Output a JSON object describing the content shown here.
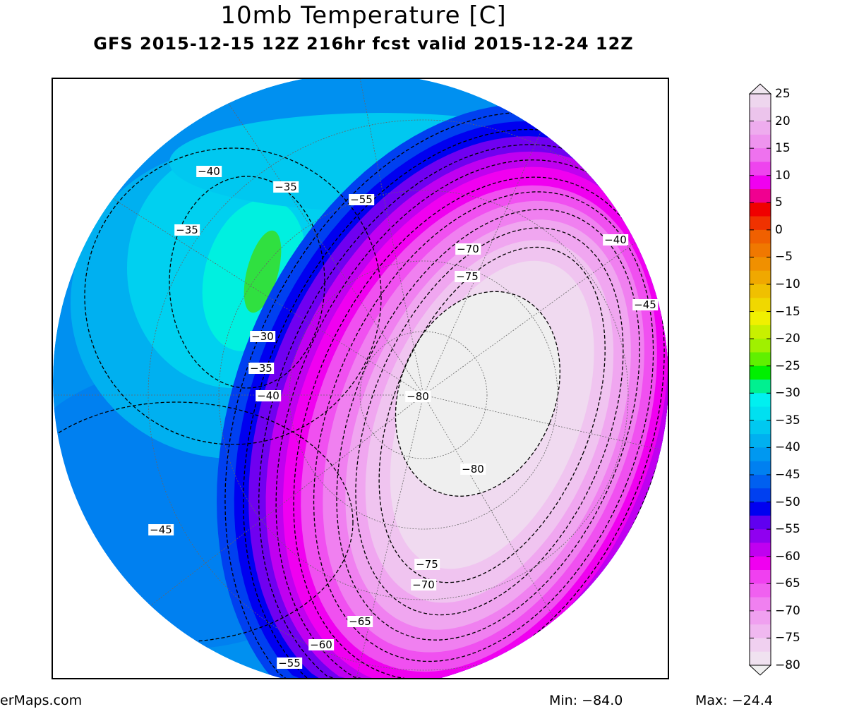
{
  "title": "10mb Temperature [C]",
  "subtitle": "GFS 2015-12-15 12Z 216hr fcst valid 2015-12-24 12Z",
  "source": "erMaps.com",
  "min_label": "Min: −84.0",
  "max_label": "Max: −24.4",
  "colorbar": {
    "ticks": [
      "25",
      "20",
      "15",
      "10",
      "5",
      "0",
      "−5",
      "−10",
      "−15",
      "−20",
      "−25",
      "−30",
      "−35",
      "−40",
      "−45",
      "−50",
      "−55",
      "−60",
      "−65",
      "−70",
      "−75",
      "−80"
    ],
    "tick_values": [
      25,
      20,
      15,
      10,
      5,
      0,
      -5,
      -10,
      -15,
      -20,
      -25,
      -30,
      -35,
      -40,
      -45,
      -50,
      -55,
      -60,
      -65,
      -70,
      -75,
      -80
    ],
    "range": [
      -80,
      25
    ],
    "step": 2.5,
    "colors_top_to_bottom": [
      "#eed6ee",
      "#ecc4ec",
      "#eeacee",
      "#ee94ee",
      "#ee72ee",
      "#ee44ee",
      "#f000f0",
      "#f00090",
      "#f00000",
      "#f03200",
      "#f06000",
      "#f07800",
      "#f09000",
      "#f0a800",
      "#f0c000",
      "#f0d800",
      "#f0f000",
      "#c8f000",
      "#a0f000",
      "#60f000",
      "#00f000",
      "#00f090",
      "#00f0f0",
      "#00e0f0",
      "#00c8f0",
      "#00b0f0",
      "#0098f0",
      "#0080f0",
      "#0060f0",
      "#0040f0",
      "#0000f0",
      "#6000f0",
      "#9000f0",
      "#c000f0",
      "#f000f0",
      "#f040f0",
      "#f060f0",
      "#f080f0",
      "#f0a0f0",
      "#f0b8f0",
      "#f0d0f0",
      "#f0e2f0"
    ],
    "below_color": "#f0f0f0",
    "above_color": "#f0e6f0"
  },
  "contour_labels": [
    "−40",
    "−35",
    "−55",
    "−35",
    "−70",
    "−75",
    "−40",
    "−45",
    "−30",
    "−35",
    "−40",
    "−80",
    "−80",
    "−45",
    "−75",
    "−70",
    "−65",
    "−60",
    "−55"
  ]
}
